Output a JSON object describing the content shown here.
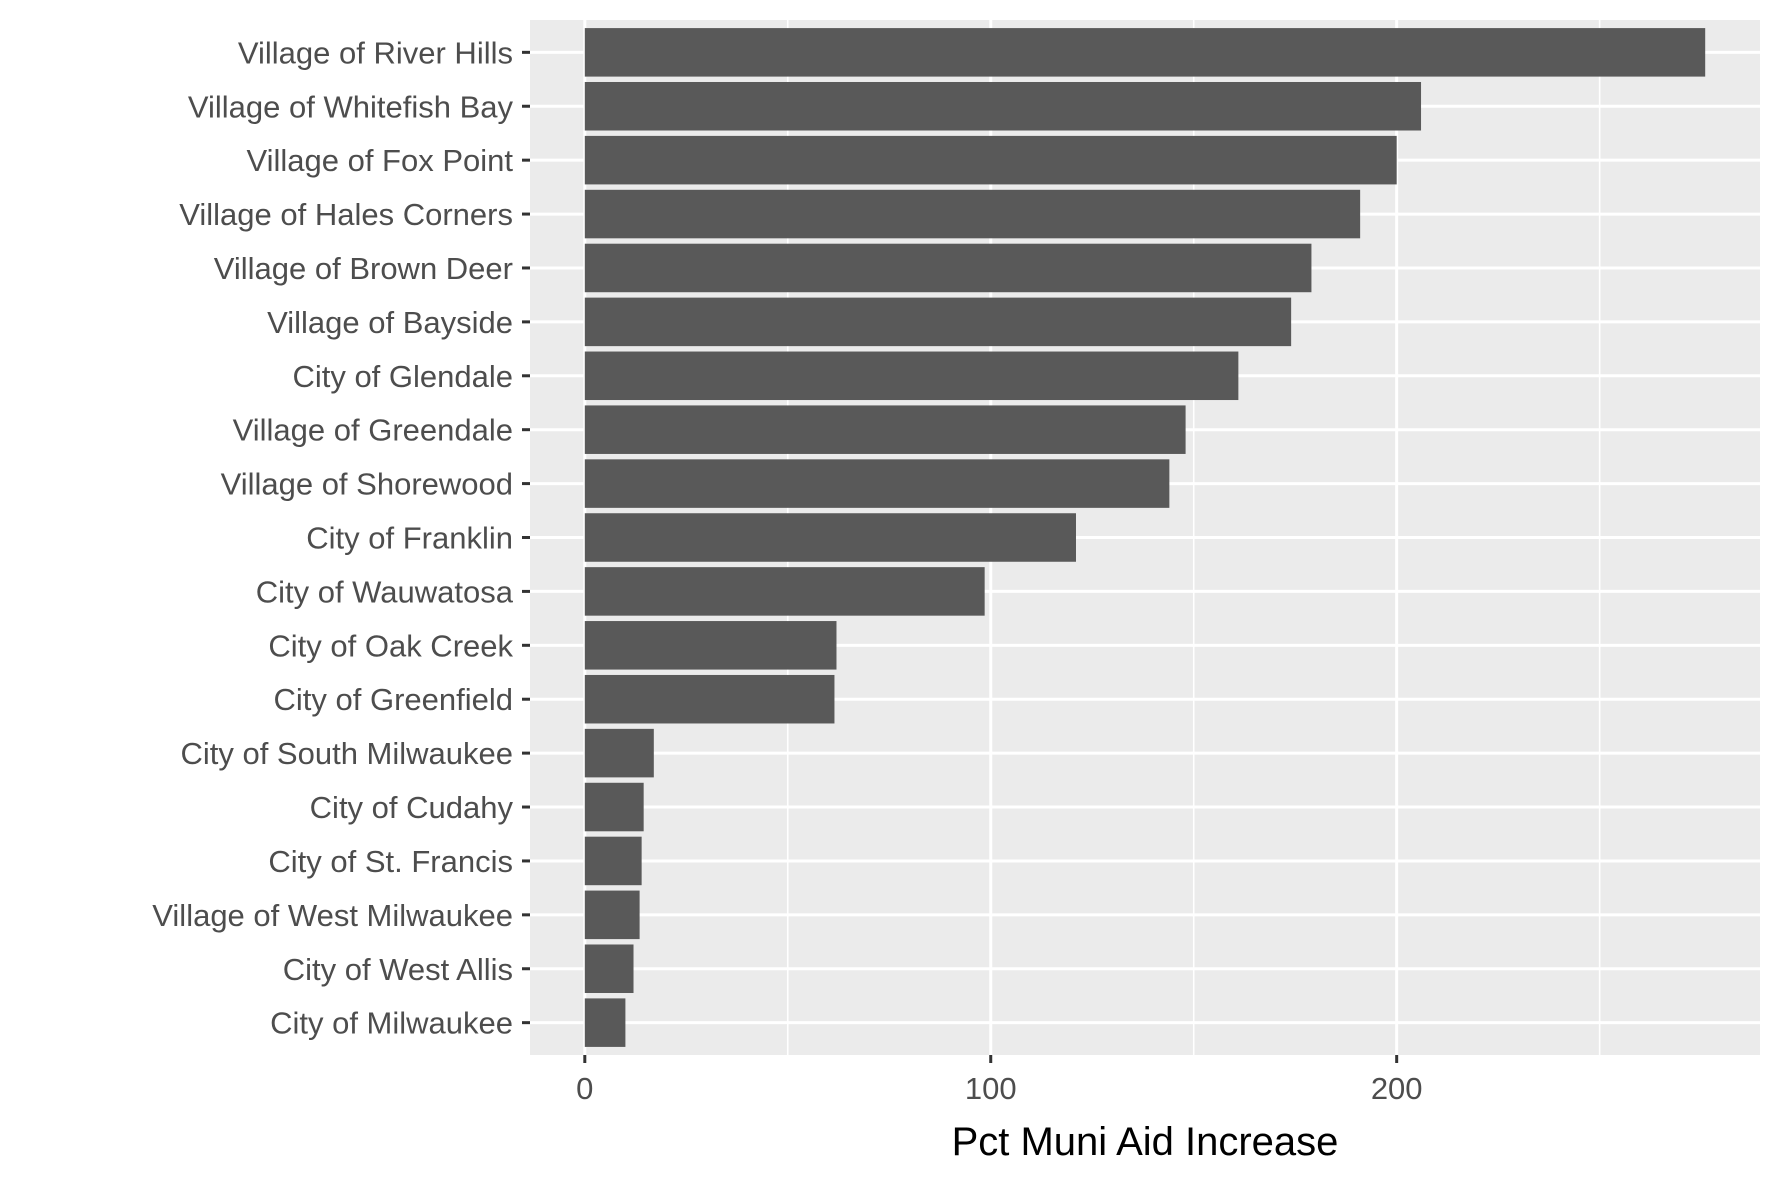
{
  "colors": {
    "panel_background": "#ebebeb",
    "grid_major": "#ffffff",
    "grid_minor": "#f5f5f5",
    "bar_fill": "#595959",
    "tick_mark": "#333333",
    "label_text": "#4d4d4d",
    "title_text": "#000000"
  },
  "chart_data": {
    "type": "bar",
    "orientation": "horizontal",
    "title": "",
    "xlabel": "Pct Muni Aid  Increase",
    "ylabel": "",
    "xlim": [
      -13.5,
      289.5
    ],
    "x_ticks": [
      0,
      100,
      200
    ],
    "x_tick_labels": [
      "0",
      "100",
      "200"
    ],
    "grid": true,
    "legend": "none",
    "categories": [
      "Village of River Hills",
      "Village of Whitefish Bay",
      "Village of Fox Point",
      "Village of Hales Corners",
      "Village of Brown Deer",
      "Village of Bayside",
      "City of Glendale",
      "Village of Greendale",
      "Village of Shorewood",
      "City of Franklin",
      "City of Wauwatosa",
      "City of Oak Creek",
      "City of Greenfield",
      "City of South Milwaukee",
      "City of Cudahy",
      "City of St. Francis",
      "Village of West Milwaukee",
      "City of West Allis",
      "City of Milwaukee"
    ],
    "values": [
      276,
      206,
      200,
      191,
      179,
      174,
      161,
      148,
      144,
      121,
      98.5,
      62,
      61.5,
      17,
      14.5,
      14,
      13.5,
      12,
      10
    ]
  }
}
